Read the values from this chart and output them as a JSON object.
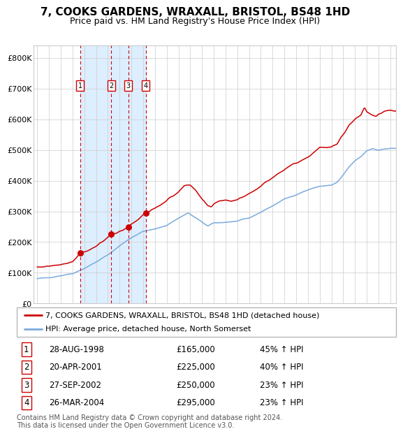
{
  "title": "7, COOKS GARDENS, WRAXALL, BRISTOL, BS48 1HD",
  "subtitle": "Price paid vs. HM Land Registry's House Price Index (HPI)",
  "legend_entry1": "7, COOKS GARDENS, WRAXALL, BRISTOL, BS48 1HD (detached house)",
  "legend_entry2": "HPI: Average price, detached house, North Somerset",
  "footer": "Contains HM Land Registry data © Crown copyright and database right 2024.\nThis data is licensed under the Open Government Licence v3.0.",
  "sales": [
    {
      "num": 1,
      "date": "28-AUG-1998",
      "price": 165000,
      "pct": "45%",
      "date_dec": 1998.65
    },
    {
      "num": 2,
      "date": "20-APR-2001",
      "price": 225000,
      "pct": "40%",
      "date_dec": 2001.3
    },
    {
      "num": 3,
      "date": "27-SEP-2002",
      "price": 250000,
      "pct": "23%",
      "date_dec": 2002.74
    },
    {
      "num": 4,
      "date": "26-MAR-2004",
      "price": 295000,
      "pct": "23%",
      "date_dec": 2004.23
    }
  ],
  "shade_x_start": 1998.65,
  "shade_x_end": 2004.23,
  "ylim": [
    0,
    840000
  ],
  "xlim_start": 1994.7,
  "xlim_end": 2025.5,
  "yticks": [
    0,
    100000,
    200000,
    300000,
    400000,
    500000,
    600000,
    700000,
    800000
  ],
  "ytick_labels": [
    "£0",
    "£100K",
    "£200K",
    "£300K",
    "£400K",
    "£500K",
    "£600K",
    "£700K",
    "£800K"
  ],
  "xticks": [
    1995,
    1996,
    1997,
    1998,
    1999,
    2000,
    2001,
    2002,
    2003,
    2004,
    2005,
    2006,
    2007,
    2008,
    2009,
    2010,
    2011,
    2012,
    2013,
    2014,
    2015,
    2016,
    2017,
    2018,
    2019,
    2020,
    2021,
    2022,
    2023,
    2024,
    2025
  ],
  "red_color": "#cc0000",
  "blue_color": "#7aaadd",
  "shade_color": "#ddeeff",
  "bg_color": "#ffffff",
  "grid_color": "#cccccc",
  "title_fontsize": 11,
  "subtitle_fontsize": 9,
  "tick_fontsize": 8,
  "legend_fontsize": 8,
  "table_fontsize": 8.5,
  "footer_fontsize": 7
}
